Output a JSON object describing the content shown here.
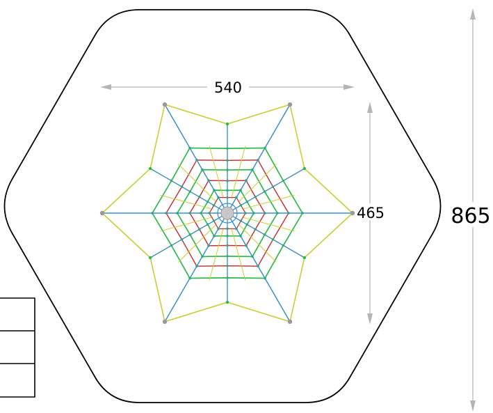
{
  "dimensions": {
    "width_label": "540",
    "depth_label": "465",
    "overall_label": "865"
  },
  "colors": {
    "background": "#ffffff",
    "outline": "#000000",
    "dimension_line": "#b5b5b5",
    "spoke": "#3a8fc8",
    "rope_green": "#2db84a",
    "rope_red": "#c8282d",
    "rope_yellow": "#cccc33",
    "anchor": "#999999",
    "hub": "#c8c8c8"
  }
}
